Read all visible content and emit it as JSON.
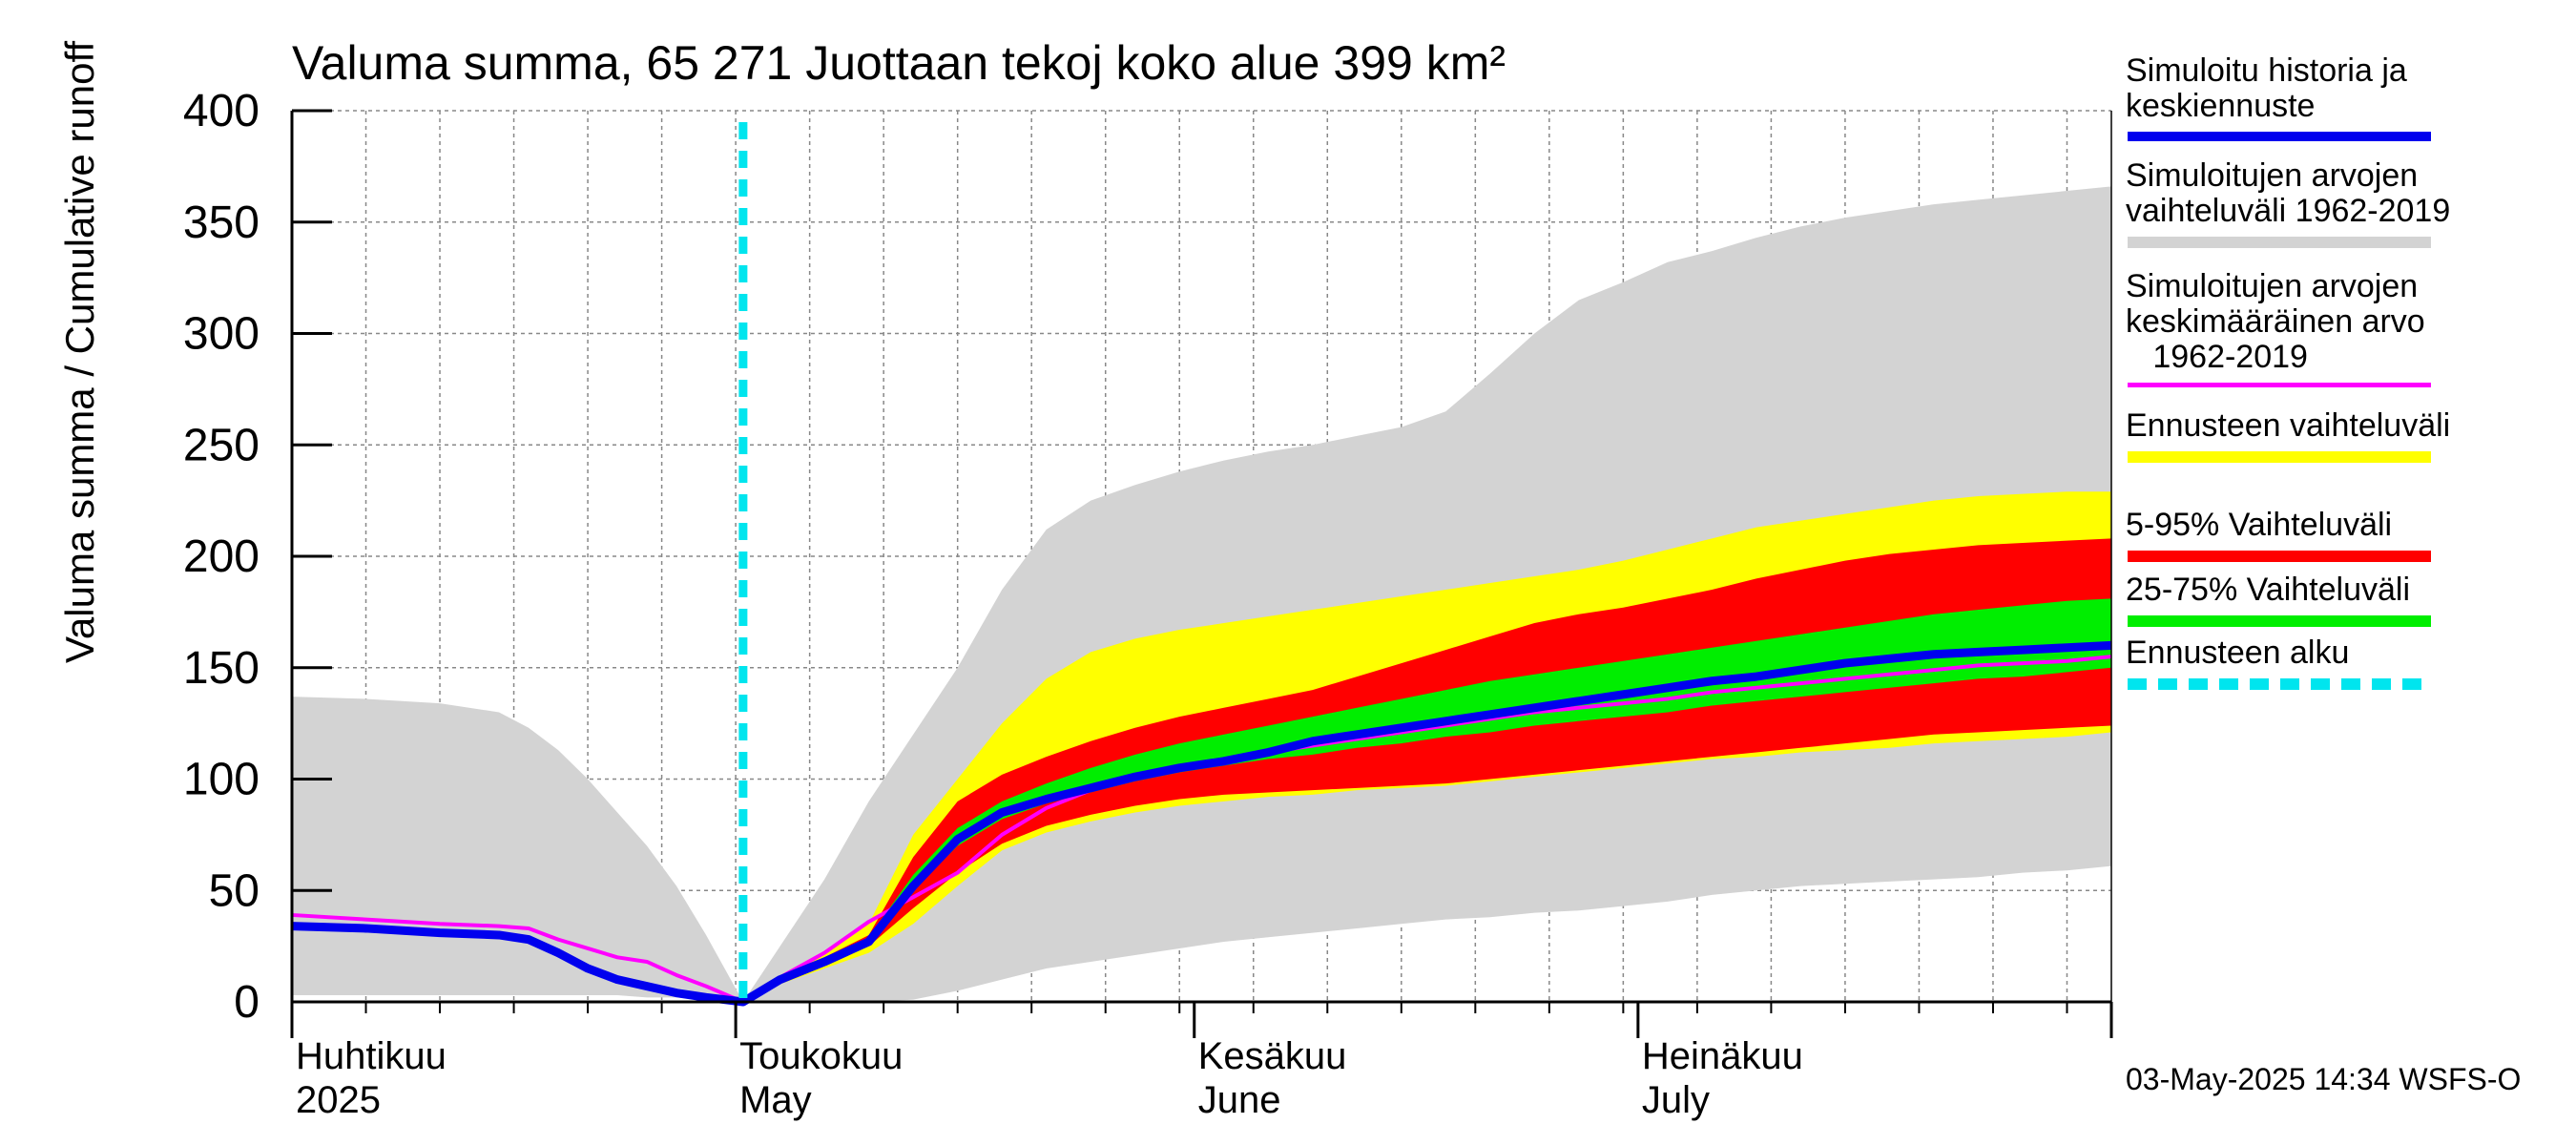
{
  "chart_data": {
    "type": "area",
    "title": "Valuma summa, 65 271 Juottaan tekoj koko alue 399 km²",
    "ylabel": "Valuma summa / Cumulative runoff    mm",
    "ylim": [
      0,
      400
    ],
    "yticks": [
      0,
      50,
      100,
      150,
      200,
      250,
      300,
      350,
      400
    ],
    "x_unit": "days since 1 April 2025",
    "xlim": [
      0,
      123
    ],
    "month_labels": [
      {
        "fi": "Huhtikuu",
        "en": "2025",
        "day": 0
      },
      {
        "fi": "Toukokuu",
        "en": "May",
        "day": 30
      },
      {
        "fi": "Kesäkuu",
        "en": "June",
        "day": 61
      },
      {
        "fi": "Heinäkuu",
        "en": "July",
        "day": 91
      }
    ],
    "forecast_start_day": 30.5,
    "x": [
      0,
      5,
      10,
      14,
      16,
      18,
      20,
      22,
      24,
      26,
      28,
      30.5,
      33,
      36,
      39,
      42,
      45,
      48,
      51,
      54,
      57,
      60,
      63,
      66,
      69,
      72,
      75,
      78,
      81,
      84,
      87,
      90,
      93,
      96,
      99,
      102,
      105,
      108,
      111,
      114,
      117,
      120,
      123
    ],
    "series": [
      {
        "name": "Simuloitujen arvojen vaihteluväli 1962-2019 (min)",
        "color": "#d3d3d3",
        "values": [
          3,
          3,
          3,
          3,
          3,
          3,
          3,
          3,
          2,
          2,
          1,
          0,
          0,
          0,
          0,
          1,
          5,
          10,
          15,
          18,
          21,
          24,
          27,
          29,
          31,
          33,
          35,
          37,
          38,
          40,
          41,
          43,
          45,
          48,
          50,
          52,
          53,
          54,
          55,
          56,
          58,
          59,
          61
        ]
      },
      {
        "name": "Simuloitujen arvojen vaihteluväli 1962-2019 (max)",
        "color": "#d3d3d3",
        "values": [
          137,
          136,
          134,
          130,
          123,
          113,
          100,
          85,
          70,
          52,
          30,
          0,
          25,
          55,
          90,
          120,
          150,
          185,
          212,
          225,
          232,
          238,
          243,
          247,
          250,
          254,
          258,
          265,
          282,
          300,
          315,
          323,
          332,
          337,
          343,
          348,
          352,
          355,
          358,
          360,
          362,
          364,
          366
        ]
      },
      {
        "name": "Ennusteen vaihteluväli (low)",
        "color": "#ffff00",
        "values": [
          null,
          null,
          null,
          null,
          null,
          null,
          null,
          null,
          null,
          null,
          null,
          0,
          8,
          15,
          22,
          35,
          52,
          68,
          76,
          81,
          85,
          88,
          90,
          92,
          93,
          95,
          96,
          97,
          99,
          101,
          103,
          105,
          107,
          109,
          110,
          112,
          113,
          114,
          116,
          117,
          118,
          119,
          121
        ]
      },
      {
        "name": "Ennusteen vaihteluväli (high)",
        "color": "#ffff00",
        "values": [
          null,
          null,
          null,
          null,
          null,
          null,
          null,
          null,
          null,
          null,
          null,
          0,
          12,
          22,
          35,
          75,
          100,
          125,
          145,
          157,
          163,
          167,
          170,
          173,
          176,
          179,
          182,
          185,
          188,
          191,
          194,
          198,
          203,
          208,
          213,
          216,
          219,
          222,
          225,
          227,
          228,
          229,
          229
        ]
      },
      {
        "name": "5-95% Vaihteluväli (low)",
        "color": "#ff0000",
        "values": [
          null,
          null,
          null,
          null,
          null,
          null,
          null,
          null,
          null,
          null,
          null,
          0,
          9,
          17,
          25,
          42,
          58,
          71,
          79,
          84,
          88,
          91,
          93,
          94,
          95,
          96,
          97,
          98,
          100,
          102,
          104,
          106,
          108,
          110,
          112,
          114,
          116,
          118,
          120,
          121,
          122,
          123,
          124
        ]
      },
      {
        "name": "5-95% Vaihteluväli (high)",
        "color": "#ff0000",
        "values": [
          null,
          null,
          null,
          null,
          null,
          null,
          null,
          null,
          null,
          null,
          null,
          0,
          11,
          20,
          30,
          65,
          90,
          102,
          110,
          117,
          123,
          128,
          132,
          136,
          140,
          146,
          152,
          158,
          164,
          170,
          174,
          177,
          181,
          185,
          190,
          194,
          198,
          201,
          203,
          205,
          206,
          207,
          208
        ]
      },
      {
        "name": "25-75% Vaihteluväli (low)",
        "color": "#00ee00",
        "values": [
          null,
          null,
          null,
          null,
          null,
          null,
          null,
          null,
          null,
          null,
          null,
          0,
          10,
          18,
          27,
          50,
          70,
          82,
          89,
          94,
          99,
          103,
          106,
          109,
          111,
          114,
          116,
          119,
          121,
          124,
          126,
          128,
          130,
          133,
          135,
          137,
          139,
          141,
          143,
          145,
          146,
          148,
          150
        ]
      },
      {
        "name": "25-75% Vaihteluväli (high)",
        "color": "#00ee00",
        "values": [
          null,
          null,
          null,
          null,
          null,
          null,
          null,
          null,
          null,
          null,
          null,
          0,
          11,
          19,
          29,
          57,
          78,
          90,
          98,
          105,
          111,
          116,
          120,
          124,
          128,
          132,
          136,
          140,
          144,
          147,
          150,
          153,
          156,
          159,
          162,
          165,
          168,
          171,
          174,
          176,
          178,
          180,
          181
        ]
      },
      {
        "name": "Simuloitujen arvojen keskimääräinen arvo 1962-2019",
        "color": "#ff00ff",
        "values": [
          39,
          37,
          35,
          34,
          33,
          28,
          24,
          20,
          18,
          12,
          7,
          0,
          11,
          22,
          36,
          47,
          58,
          75,
          87,
          95,
          100,
          104,
          108,
          112,
          115,
          118,
          121,
          124,
          127,
          130,
          132,
          134,
          136,
          139,
          141,
          143,
          145,
          147,
          149,
          151,
          152,
          153,
          155
        ]
      },
      {
        "name": "Simuloitu historia ja keskiennuste",
        "color": "#0000ee",
        "values": [
          34,
          33,
          31,
          30,
          28,
          22,
          15,
          10,
          7,
          4,
          2,
          0,
          10,
          18,
          27,
          52,
          73,
          85,
          91,
          96,
          101,
          105,
          108,
          112,
          117,
          120,
          123,
          126,
          129,
          132,
          135,
          138,
          141,
          144,
          146,
          149,
          152,
          154,
          156,
          157,
          158,
          159,
          160
        ]
      }
    ],
    "legend": [
      {
        "label": "Simuloitu historia ja\nkeskiennuste",
        "color": "#0000ee",
        "style": "line"
      },
      {
        "label": "Simuloitujen arvojen\nvaihteluväli 1962-2019",
        "color": "#d3d3d3",
        "style": "band"
      },
      {
        "label": "Simuloitujen arvojen\nkeskimääräinen arvo\n   1962-2019",
        "color": "#ff00ff",
        "style": "thin-line"
      },
      {
        "label": "Ennusteen vaihteluväli",
        "color": "#ffff00",
        "style": "band"
      },
      {
        "label": "5-95% Vaihteluväli",
        "color": "#ff0000",
        "style": "band"
      },
      {
        "label": "25-75% Vaihteluväli",
        "color": "#00ee00",
        "style": "band"
      },
      {
        "label": "Ennusteen alku",
        "color": "#00e5ee",
        "style": "dashed"
      }
    ],
    "legend_position": "right",
    "grid": true
  },
  "footer": {
    "timestamp": "03-May-2025 14:34 WSFS-O"
  }
}
